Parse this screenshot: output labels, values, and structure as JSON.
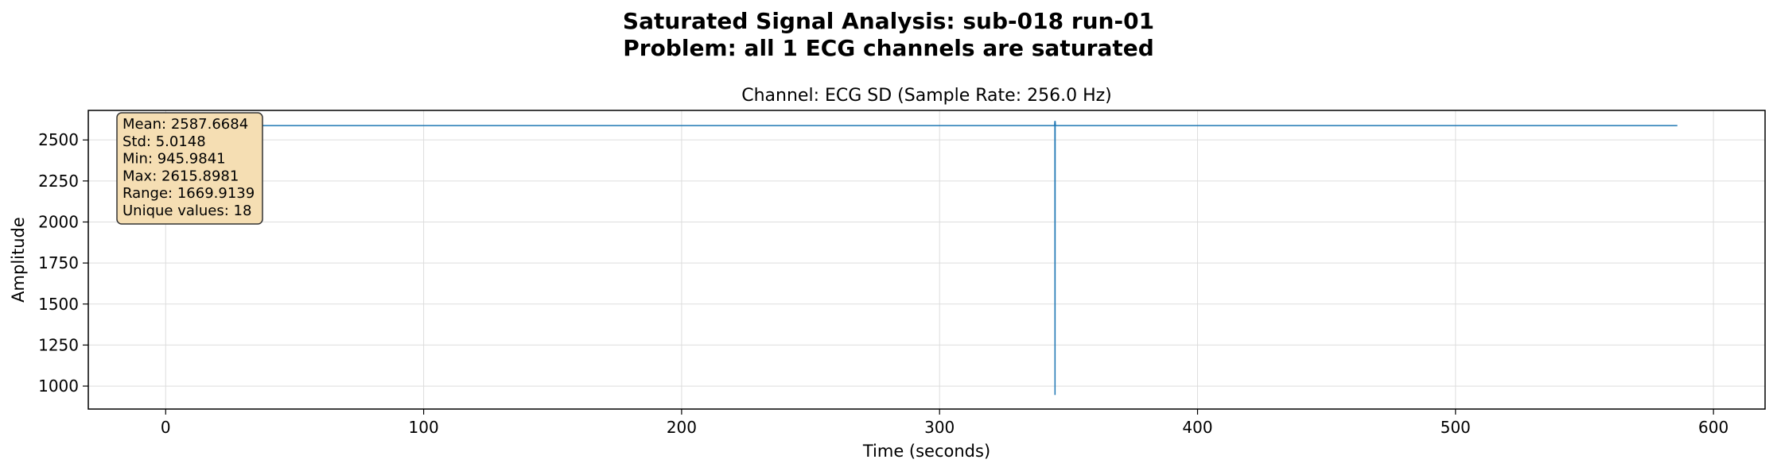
{
  "figure": {
    "suptitle_line1": "Saturated Signal Analysis: sub-018 run-01",
    "suptitle_line2": "Problem: all 1 ECG channels are saturated"
  },
  "chart_data": {
    "type": "line",
    "title": "Channel: ECG SD (Sample Rate: 256.0 Hz)",
    "xlabel": "Time (seconds)",
    "ylabel": "Amplitude",
    "xlim": [
      -30,
      620
    ],
    "ylim": [
      860,
      2680
    ],
    "xticks": [
      0,
      100,
      200,
      300,
      400,
      500,
      600
    ],
    "yticks": [
      1000,
      1250,
      1500,
      1750,
      2000,
      2250,
      2500
    ],
    "grid": true,
    "line_color": "#1f77b4",
    "series": [
      {
        "x": [
          0,
          344.6,
          344.7,
          344.75,
          344.8,
          344.9,
          586
        ],
        "y": [
          2587.7,
          2587.7,
          2615.9,
          945.98,
          2615.9,
          2587.7,
          2587.7
        ]
      }
    ],
    "stats_box": {
      "lines": [
        "Mean: 2587.6684",
        "Std: 5.0148",
        "Min: 945.9841",
        "Max: 2615.8981",
        "Range: 1669.9139",
        "Unique values: 18"
      ],
      "background": "#f5deb3",
      "placement": "top-left"
    }
  }
}
